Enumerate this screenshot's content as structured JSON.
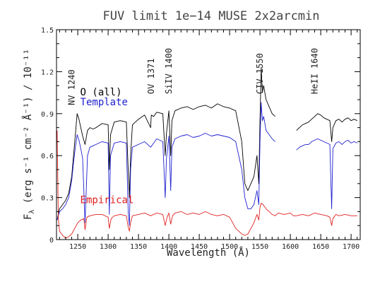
{
  "chart_data": {
    "type": "line",
    "title": "FUV limit 1e−14 MUSE 2x2arcmin",
    "xlabel": "Wavelength (Å)",
    "ylabel_main": "F",
    "ylabel_sub": "λ",
    "ylabel_rest": " (erg s⁻¹ cm⁻² Å⁻¹) / 10⁻¹¹",
    "xlim": [
      1215,
      1715
    ],
    "ylim": [
      0,
      1.5
    ],
    "xticks": [
      1250,
      1300,
      1350,
      1400,
      1450,
      1500,
      1550,
      1600,
      1650,
      1700
    ],
    "yticks": [
      0,
      0.3,
      0.6,
      0.9,
      1.2,
      1.5
    ],
    "ytick_labels": [
      "0",
      "0.3",
      "0.6",
      "0.9",
      "1.2",
      "1.5"
    ],
    "line_labels": [
      {
        "text": "NV 1240",
        "x": 1240,
        "y": 0.96
      },
      {
        "text": "OV 1371",
        "x": 1371,
        "y": 1.04
      },
      {
        "text": "SiIV 1400",
        "x": 1400,
        "y": 1.04
      },
      {
        "text": "CIV 1550",
        "x": 1550,
        "y": 1.04
      },
      {
        "text": "HeII 1640",
        "x": 1640,
        "y": 1.04
      }
    ],
    "series": [
      {
        "name": "O (all)",
        "color": "#000000",
        "x": [
          1216,
          1220,
          1225,
          1230,
          1235,
          1240,
          1243,
          1246,
          1249,
          1252,
          1255,
          1258,
          1262,
          1266,
          1270,
          1275,
          1280,
          1290,
          1300,
          1302,
          1304,
          1310,
          1320,
          1330,
          1333,
          1335,
          1337,
          1340,
          1350,
          1360,
          1370,
          1371,
          1375,
          1380,
          1390,
          1394,
          1396,
          1400,
          1403,
          1405,
          1410,
          1420,
          1430,
          1440,
          1450,
          1460,
          1470,
          1480,
          1490,
          1500,
          1510,
          1520,
          1525,
          1530,
          1535,
          1540,
          1545,
          1548,
          1550,
          1552,
          1554,
          1556,
          1560,
          1565,
          1570,
          1575
        ],
        "y": [
          0.14,
          0.22,
          0.25,
          0.28,
          0.33,
          0.45,
          0.6,
          0.75,
          0.9,
          0.86,
          0.8,
          0.74,
          0.68,
          0.78,
          0.8,
          0.79,
          0.8,
          0.83,
          0.82,
          0.5,
          0.75,
          0.84,
          0.85,
          0.84,
          0.5,
          0.3,
          0.6,
          0.82,
          0.86,
          0.89,
          0.8,
          0.89,
          0.88,
          0.91,
          0.9,
          0.6,
          0.76,
          0.92,
          0.6,
          0.85,
          0.92,
          0.94,
          0.95,
          0.93,
          0.95,
          0.96,
          0.94,
          0.97,
          0.95,
          0.94,
          0.92,
          0.7,
          0.4,
          0.35,
          0.4,
          0.45,
          0.6,
          0.4,
          0.85,
          1.23,
          1.05,
          1.1,
          1.0,
          0.95,
          0.9,
          0.88
        ]
      },
      {
        "name": "O (all) segment",
        "color": "#000000",
        "x": [
          1610,
          1615,
          1620,
          1625,
          1630,
          1635,
          1640,
          1645,
          1650,
          1655,
          1660,
          1665,
          1668,
          1670,
          1675,
          1680,
          1685,
          1690,
          1695,
          1700,
          1705,
          1710
        ],
        "y": [
          0.78,
          0.8,
          0.82,
          0.83,
          0.84,
          0.86,
          0.88,
          0.9,
          0.89,
          0.87,
          0.86,
          0.85,
          0.7,
          0.8,
          0.85,
          0.86,
          0.84,
          0.86,
          0.87,
          0.85,
          0.86,
          0.85
        ]
      },
      {
        "name": "Template",
        "color": "#2020d0",
        "x": [
          1216,
          1220,
          1225,
          1230,
          1235,
          1240,
          1243,
          1246,
          1249,
          1252,
          1255,
          1258,
          1262,
          1266,
          1270,
          1275,
          1280,
          1290,
          1300,
          1302,
          1304,
          1310,
          1320,
          1330,
          1333,
          1335,
          1337,
          1340,
          1350,
          1360,
          1370,
          1375,
          1380,
          1390,
          1394,
          1396,
          1400,
          1403,
          1405,
          1410,
          1420,
          1430,
          1440,
          1450,
          1460,
          1470,
          1480,
          1490,
          1500,
          1510,
          1520,
          1525,
          1530,
          1535,
          1540,
          1545,
          1548,
          1550,
          1552,
          1554,
          1556,
          1560,
          1565,
          1570,
          1575
        ],
        "y": [
          0.14,
          0.2,
          0.22,
          0.25,
          0.3,
          0.42,
          0.55,
          0.66,
          0.75,
          0.71,
          0.65,
          0.58,
          0.12,
          0.6,
          0.66,
          0.67,
          0.68,
          0.7,
          0.69,
          0.18,
          0.6,
          0.69,
          0.7,
          0.69,
          0.2,
          0.1,
          0.5,
          0.66,
          0.68,
          0.7,
          0.66,
          0.69,
          0.72,
          0.7,
          0.3,
          0.58,
          0.74,
          0.35,
          0.66,
          0.72,
          0.74,
          0.75,
          0.73,
          0.74,
          0.76,
          0.74,
          0.75,
          0.74,
          0.73,
          0.7,
          0.5,
          0.3,
          0.22,
          0.22,
          0.25,
          0.35,
          0.25,
          0.7,
          0.98,
          0.85,
          0.88,
          0.78,
          0.75,
          0.72,
          0.7
        ]
      },
      {
        "name": "Template segment",
        "color": "#2020d0",
        "x": [
          1610,
          1615,
          1620,
          1625,
          1630,
          1635,
          1640,
          1645,
          1650,
          1655,
          1660,
          1665,
          1668,
          1670,
          1675,
          1680,
          1685,
          1690,
          1695,
          1700,
          1705,
          1710
        ],
        "y": [
          0.64,
          0.66,
          0.67,
          0.68,
          0.68,
          0.7,
          0.71,
          0.72,
          0.71,
          0.7,
          0.69,
          0.68,
          0.22,
          0.65,
          0.69,
          0.7,
          0.68,
          0.7,
          0.71,
          0.69,
          0.7,
          0.69
        ]
      },
      {
        "name": "Empirical",
        "color": "#e02020",
        "x": [
          1216,
          1218,
          1220,
          1225,
          1230,
          1235,
          1240,
          1245,
          1250,
          1255,
          1260,
          1262,
          1265,
          1270,
          1280,
          1290,
          1300,
          1302,
          1305,
          1310,
          1320,
          1330,
          1333,
          1335,
          1337,
          1340,
          1350,
          1360,
          1370,
          1380,
          1390,
          1394,
          1397,
          1400,
          1403,
          1406,
          1410,
          1420,
          1430,
          1440,
          1450,
          1460,
          1470,
          1480,
          1490,
          1500,
          1505,
          1510,
          1515,
          1520,
          1525,
          1530,
          1535,
          1540,
          1545,
          1548,
          1550,
          1552,
          1555,
          1560,
          1565,
          1570,
          1575,
          1580,
          1590,
          1600,
          1605,
          1610,
          1620,
          1630,
          1640,
          1650,
          1660,
          1665,
          1668,
          1670,
          1675,
          1680,
          1690,
          1700,
          1710
        ],
        "y": [
          0.78,
          0.15,
          0.06,
          0.03,
          0.01,
          0.02,
          0.04,
          0.08,
          0.12,
          0.14,
          0.15,
          0.07,
          0.16,
          0.17,
          0.18,
          0.18,
          0.16,
          0.08,
          0.15,
          0.17,
          0.18,
          0.17,
          0.09,
          0.06,
          0.12,
          0.17,
          0.18,
          0.19,
          0.17,
          0.19,
          0.18,
          0.1,
          0.16,
          0.19,
          0.11,
          0.17,
          0.19,
          0.2,
          0.18,
          0.19,
          0.18,
          0.2,
          0.18,
          0.17,
          0.18,
          0.16,
          0.12,
          0.08,
          0.06,
          0.04,
          0.03,
          0.04,
          0.08,
          0.12,
          0.18,
          0.14,
          0.23,
          0.26,
          0.25,
          0.22,
          0.2,
          0.18,
          0.17,
          0.19,
          0.18,
          0.19,
          0.17,
          0.17,
          0.18,
          0.17,
          0.19,
          0.18,
          0.17,
          0.16,
          0.1,
          0.15,
          0.18,
          0.17,
          0.18,
          0.17,
          0.17
        ]
      }
    ],
    "legend": [
      {
        "text": "O (all)",
        "color": "#000000",
        "x": 1254,
        "y": 1.03
      },
      {
        "text": "Template",
        "color": "#2020d0",
        "x": 1254,
        "y": 0.96
      },
      {
        "text": "Empirical",
        "color": "#e02020",
        "x": 1254,
        "y": 0.26
      }
    ]
  }
}
